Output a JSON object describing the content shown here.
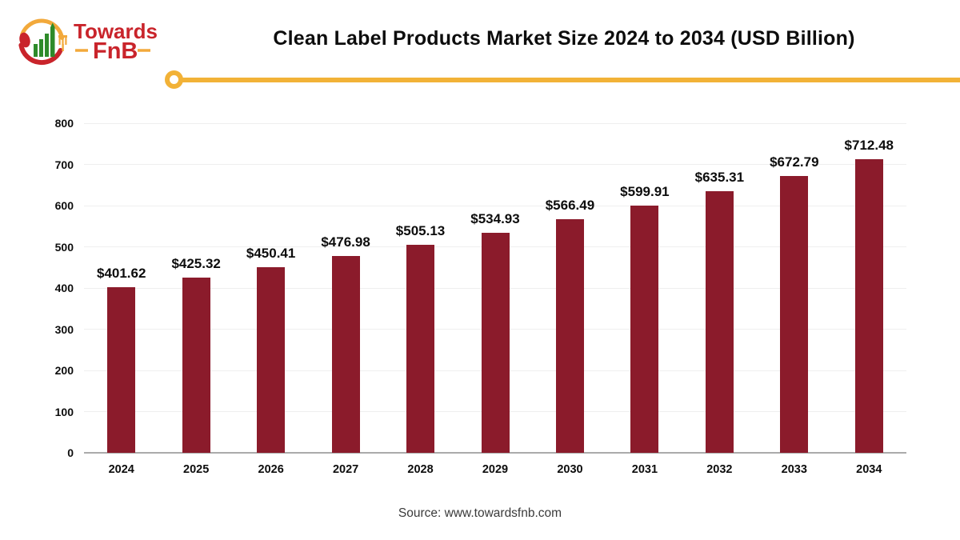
{
  "logo": {
    "brand_top": "Towards",
    "brand_bottom": "FnB"
  },
  "title": "Clean Label Products Market Size 2024 to 2034 (USD Billion)",
  "source": "Source: www.towardsfnb.com",
  "chart_data": {
    "type": "bar",
    "title": "Clean Label Products Market Size 2024 to 2034 (USD Billion)",
    "unit": "USD Billion",
    "categories": [
      "2024",
      "2025",
      "2026",
      "2027",
      "2028",
      "2029",
      "2030",
      "2031",
      "2032",
      "2033",
      "2034"
    ],
    "values": [
      401.62,
      425.32,
      450.41,
      476.98,
      505.13,
      534.93,
      566.49,
      599.91,
      635.31,
      672.79,
      712.48
    ],
    "value_labels": [
      "$401.62",
      "$425.32",
      "$450.41",
      "$476.98",
      "$505.13",
      "$534.93",
      "$566.49",
      "$599.91",
      "$635.31",
      "$672.79",
      "$712.48"
    ],
    "xlabel": "",
    "ylabel": "",
    "ylim": [
      0,
      800
    ],
    "yticks": [
      0,
      100,
      200,
      300,
      400,
      500,
      600,
      700,
      800
    ],
    "grid": true,
    "legend": false,
    "bar_color": "#8B1B2B"
  },
  "colors": {
    "accent_yellow": "#F2B237",
    "logo_yellow": "#F2A93B",
    "brand_red": "#C9242B",
    "bar_maroon": "#8B1B2B",
    "logo_green": "#2E8B2A",
    "gridline": "#EFEFEF",
    "axis_line": "#ABABAB",
    "text": "#0D0D0D"
  }
}
